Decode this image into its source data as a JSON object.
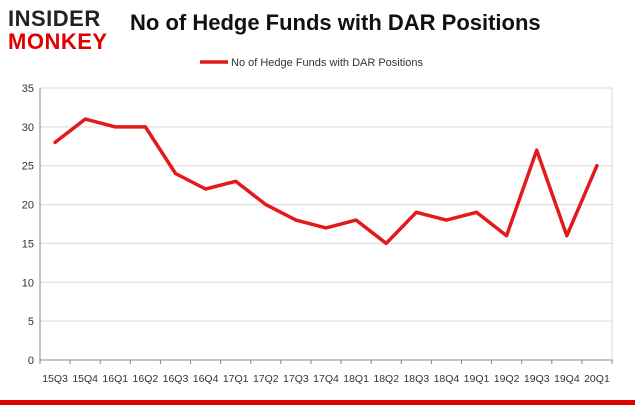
{
  "logo": {
    "line1": "INSIDER",
    "line2": "MONKEY"
  },
  "colors": {
    "series": "#e31a1c",
    "brand_red": "#e00000",
    "grid": "#d9d9d9",
    "axis": "#888888"
  },
  "chart_data": {
    "type": "line",
    "title": "No of Hedge Funds with DAR Positions",
    "xlabel": "",
    "ylabel": "",
    "categories": [
      "15Q3",
      "15Q4",
      "16Q1",
      "16Q2",
      "16Q3",
      "16Q4",
      "17Q1",
      "17Q2",
      "17Q3",
      "17Q4",
      "18Q1",
      "18Q2",
      "18Q3",
      "18Q4",
      "19Q1",
      "19Q2",
      "19Q3",
      "19Q4",
      "20Q1"
    ],
    "series": [
      {
        "name": "No of Hedge Funds with DAR Positions",
        "values": [
          28,
          31,
          30,
          30,
          24,
          22,
          23,
          20,
          18,
          17,
          18,
          15,
          19,
          18,
          19,
          16,
          27,
          16,
          25
        ]
      }
    ],
    "ylim": [
      0,
      35
    ],
    "yticks": [
      0,
      5,
      10,
      15,
      20,
      25,
      30,
      35
    ],
    "grid": true,
    "legend": "top-center"
  }
}
